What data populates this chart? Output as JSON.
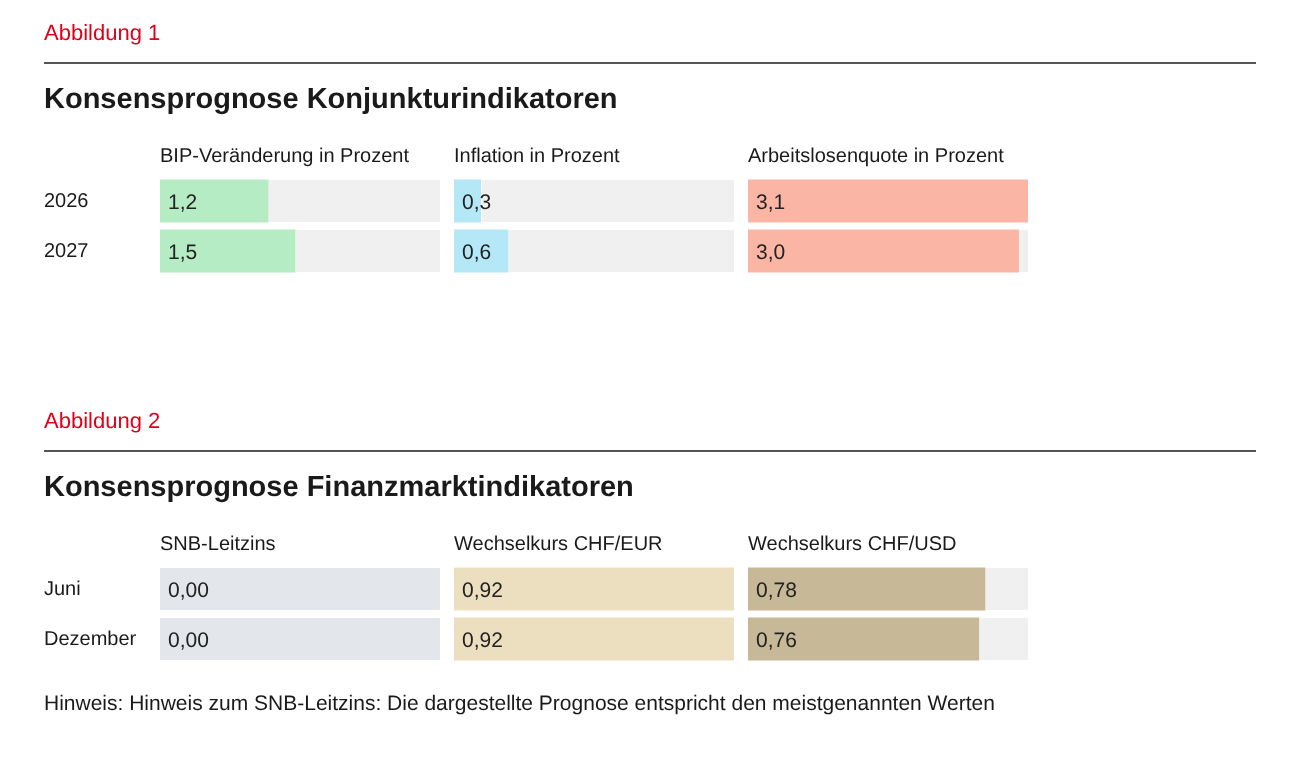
{
  "chart_data": [
    {
      "type": "bar",
      "orientation": "horizontal",
      "subtitle": "Abbildung 1",
      "title": "Konsensprognose Konjunkturindikatoren",
      "categories": [
        "2026",
        "2027"
      ],
      "tick_labels": "y",
      "series": [
        {
          "name": "BIP-Veränderung in Prozent",
          "color": "#b6ecc3",
          "values": [
            1.2,
            1.5
          ],
          "value_labels": [
            "1,2",
            "1,5"
          ]
        }
      ]
    },
    {
      "type": "bar",
      "orientation": "horizontal",
      "categories": [
        null,
        null
      ],
      "series": [
        {
          "name": "Inflation in Prozent",
          "color": "#b4e8f6",
          "values": [
            0.3,
            0.6
          ],
          "value_labels": [
            "0,3",
            "0,6"
          ]
        }
      ]
    },
    {
      "type": "bar",
      "orientation": "horizontal",
      "categories": [
        null,
        null
      ],
      "series": [
        {
          "name": "Arbeitslosenquote in Prozent",
          "color": "#fbb5a5",
          "values": [
            3.1,
            3.0
          ],
          "value_labels": [
            "3,1",
            "3,0"
          ]
        }
      ]
    },
    {
      "type": "other",
      "subtitle": "Abbildung 2",
      "title": "Konsensprognose Finanzmarktindikatoren",
      "categories": [
        "Juni",
        "Dezember"
      ],
      "series": [
        {
          "name": "SNB-Leitzins",
          "color": "#e3e7eb",
          "values": [
            0,
            0
          ],
          "value_labels": [
            "0,00",
            "0,00"
          ]
        }
      ],
      "annotations": [
        "Hinweis: Hinweis zum SNB-Leitzins: Die dargestellte Prognose entspricht den meistgenannten Werten"
      ]
    },
    {
      "type": "bar",
      "orientation": "horizontal",
      "categories": [
        null,
        null
      ],
      "series": [
        {
          "name": "Wechselkurs CHF/EUR",
          "color": "#ecdfbf",
          "values": [
            0.92,
            0.92
          ],
          "value_labels": [
            "0,92",
            "0,92"
          ]
        }
      ]
    },
    {
      "type": "bar",
      "orientation": "horizontal",
      "categories": [
        null,
        null
      ],
      "series": [
        {
          "name": "Wechselkurs CHF/USD",
          "color": "#c7b897",
          "values": [
            0.78,
            0.76
          ],
          "value_labels": [
            "0,78",
            "0,76"
          ]
        }
      ]
    }
  ]
}
